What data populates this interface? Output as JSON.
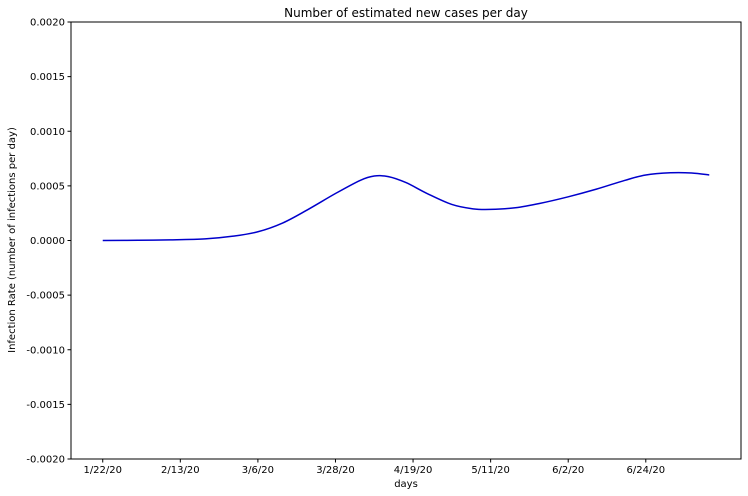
{
  "chart_data": {
    "type": "line",
    "title": "Number of estimated new cases per day",
    "xlabel": "days",
    "ylabel": "Infection Rate (number of infections per day)",
    "ylim": [
      -0.002,
      0.002
    ],
    "yticks": [
      -0.002,
      -0.0015,
      -0.001,
      -0.0005,
      0.0,
      0.0005,
      0.001,
      0.0015,
      0.002
    ],
    "ytick_labels": [
      "-0.0020",
      "-0.0015",
      "-0.0010",
      "-0.0005",
      "0.0000",
      "0.0005",
      "0.0010",
      "0.0015",
      "0.0020"
    ],
    "xlim": [
      "2020-01-13",
      "2020-07-21"
    ],
    "xticks": [
      "2020-01-22",
      "2020-02-13",
      "2020-03-06",
      "2020-03-28",
      "2020-04-19",
      "2020-05-11",
      "2020-06-02",
      "2020-06-24"
    ],
    "xtick_labels": [
      "1/22/20",
      "2/13/20",
      "3/6/20",
      "3/28/20",
      "4/19/20",
      "5/11/20",
      "6/2/20",
      "6/24/20"
    ],
    "grid": false,
    "line_color": "#0000cc",
    "series": [
      {
        "x": [
          "2020-01-22",
          "2020-02-01",
          "2020-02-10",
          "2020-02-20",
          "2020-02-28",
          "2020-03-06",
          "2020-03-13",
          "2020-03-20",
          "2020-03-28",
          "2020-04-04",
          "2020-04-08",
          "2020-04-12",
          "2020-04-17",
          "2020-04-23",
          "2020-04-30",
          "2020-05-06",
          "2020-05-11",
          "2020-05-18",
          "2020-05-25",
          "2020-06-02",
          "2020-06-10",
          "2020-06-18",
          "2020-06-24",
          "2020-07-01",
          "2020-07-07",
          "2020-07-12"
        ],
        "values": [
          0.0,
          2e-06,
          6e-06,
          1.5e-05,
          4e-05,
          8e-05,
          0.00016,
          0.00028,
          0.00043,
          0.00055,
          0.00059,
          0.000585,
          0.00053,
          0.00043,
          0.00033,
          0.00029,
          0.000285,
          0.0003,
          0.00034,
          0.0004,
          0.00047,
          0.00055,
          0.0006,
          0.00062,
          0.000618,
          0.0006
        ]
      }
    ]
  }
}
